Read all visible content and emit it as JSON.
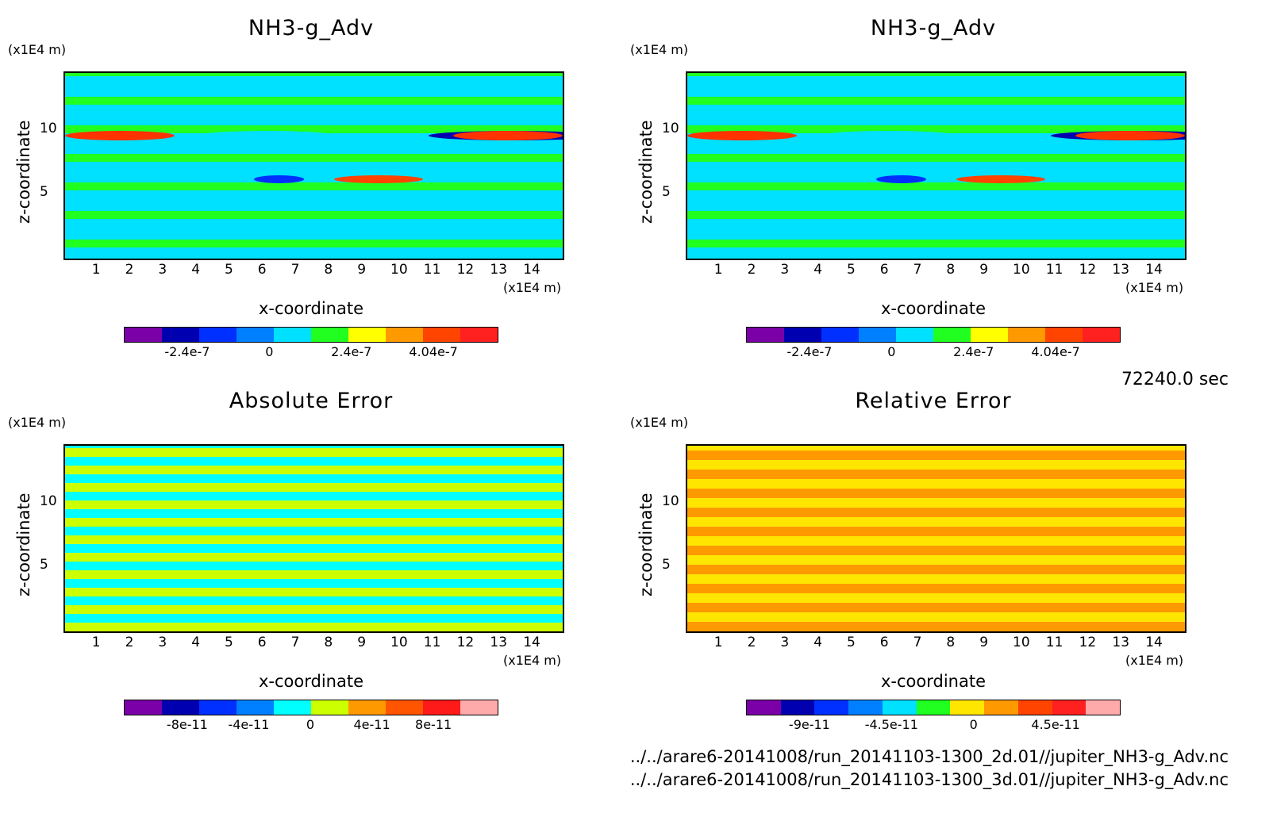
{
  "chart_data": [
    {
      "type": "heatmap",
      "title": "NH3-g_Adv",
      "xlabel": "x-coordinate",
      "ylabel": "z-coordinate",
      "x_unit": "(x1E4 m)",
      "y_unit": "(x1E4 m)",
      "xticks": [
        1,
        2,
        3,
        4,
        5,
        6,
        7,
        8,
        9,
        10,
        11,
        12,
        13,
        14
      ],
      "yticks": [
        5,
        10
      ],
      "xlim": [
        0,
        15
      ],
      "ylim": [
        0,
        14.5
      ],
      "colorbar": {
        "colors": [
          "#7b00a8",
          "#0000b0",
          "#0030ff",
          "#0080ff",
          "#00e0ff",
          "#20ff20",
          "#ffff00",
          "#ff9900",
          "#ff4400",
          "#ff2020"
        ],
        "labels": [
          "-2.4e-7",
          "0",
          "2.4e-7",
          "4.04e-7"
        ]
      }
    },
    {
      "type": "heatmap",
      "title": "NH3-g_Adv",
      "xlabel": "x-coordinate",
      "ylabel": "z-coordinate",
      "x_unit": "(x1E4 m)",
      "y_unit": "(x1E4 m)",
      "xticks": [
        1,
        2,
        3,
        4,
        5,
        6,
        7,
        8,
        9,
        10,
        11,
        12,
        13,
        14
      ],
      "yticks": [
        5,
        10
      ],
      "xlim": [
        0,
        15
      ],
      "ylim": [
        0,
        14.5
      ],
      "colorbar": {
        "colors": [
          "#7b00a8",
          "#0000b0",
          "#0030ff",
          "#0080ff",
          "#00e0ff",
          "#20ff20",
          "#ffff00",
          "#ff9900",
          "#ff4400",
          "#ff2020"
        ],
        "labels": [
          "-2.4e-7",
          "0",
          "2.4e-7",
          "4.04e-7"
        ]
      }
    },
    {
      "type": "heatmap",
      "title": "Absolute Error",
      "xlabel": "x-coordinate",
      "ylabel": "z-coordinate",
      "x_unit": "(x1E4 m)",
      "y_unit": "(x1E4 m)",
      "xticks": [
        1,
        2,
        3,
        4,
        5,
        6,
        7,
        8,
        9,
        10,
        11,
        12,
        13,
        14
      ],
      "yticks": [
        5,
        10
      ],
      "xlim": [
        0,
        15
      ],
      "ylim": [
        0,
        14.5
      ],
      "colorbar": {
        "colors": [
          "#7b00a8",
          "#0000b0",
          "#0030ff",
          "#0080ff",
          "#00ffff",
          "#ccff00",
          "#ff9900",
          "#ff5500",
          "#ff1a1a",
          "#ffaaaa"
        ],
        "labels": [
          "-8e-11",
          "-4e-11",
          "0",
          "4e-11",
          "8e-11"
        ]
      }
    },
    {
      "type": "heatmap",
      "title": "Relative Error",
      "xlabel": "x-coordinate",
      "ylabel": "z-coordinate",
      "x_unit": "(x1E4 m)",
      "y_unit": "(x1E4 m)",
      "xticks": [
        1,
        2,
        3,
        4,
        5,
        6,
        7,
        8,
        9,
        10,
        11,
        12,
        13,
        14
      ],
      "yticks": [
        5,
        10
      ],
      "xlim": [
        0,
        15
      ],
      "ylim": [
        0,
        14.5
      ],
      "colorbar": {
        "colors": [
          "#7b00a8",
          "#0000b0",
          "#0030ff",
          "#0080ff",
          "#00e0ff",
          "#20ff20",
          "#ffe600",
          "#ff9900",
          "#ff4400",
          "#ff2020",
          "#ffaaaa"
        ],
        "labels": [
          "-9e-11",
          "-4.5e-11",
          "0",
          "4.5e-11"
        ]
      }
    }
  ],
  "time_label": "72240.0 sec",
  "files": [
    "../../arare6-20141008/run_20141103-1300_2d.01//jupiter_NH3-g_Adv.nc",
    "../../arare6-20141008/run_20141103-1300_3d.01//jupiter_NH3-g_Adv.nc"
  ]
}
